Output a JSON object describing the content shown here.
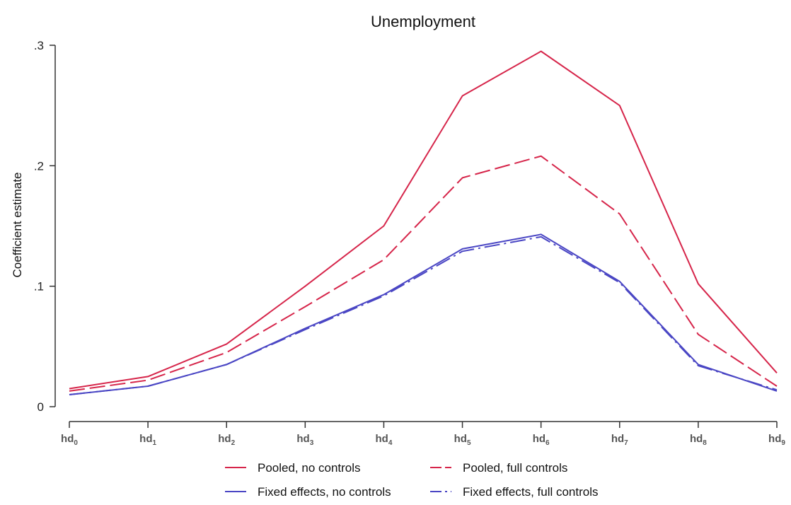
{
  "chart_data": {
    "type": "line",
    "title": "Unemployment",
    "ylabel": "Coefficient estimate",
    "xlabel": "",
    "ylim": [
      0,
      0.3
    ],
    "yticks": [
      0,
      0.1,
      0.2,
      0.3
    ],
    "ytick_labels": [
      "0",
      ".1",
      ".2",
      ".3"
    ],
    "categories": [
      {
        "base": "hd",
        "sub": "0"
      },
      {
        "base": "hd",
        "sub": "1"
      },
      {
        "base": "hd",
        "sub": "2"
      },
      {
        "base": "hd",
        "sub": "3"
      },
      {
        "base": "hd",
        "sub": "4"
      },
      {
        "base": "hd",
        "sub": "5"
      },
      {
        "base": "hd",
        "sub": "6"
      },
      {
        "base": "hd",
        "sub": "7"
      },
      {
        "base": "hd",
        "sub": "8"
      },
      {
        "base": "hd",
        "sub": "9"
      }
    ],
    "grid": false,
    "legend_position": "bottom",
    "series": [
      {
        "name": "Pooled, no controls",
        "color": "#d6254a",
        "style": "solid",
        "values": [
          0.015,
          0.025,
          0.052,
          0.1,
          0.15,
          0.258,
          0.295,
          0.25,
          0.102,
          0.028
        ]
      },
      {
        "name": "Pooled, full controls",
        "color": "#d6254a",
        "style": "dashed",
        "values": [
          0.013,
          0.022,
          0.045,
          0.083,
          0.122,
          0.19,
          0.208,
          0.16,
          0.06,
          0.017
        ]
      },
      {
        "name": "Fixed effects, no controls",
        "color": "#4a46c4",
        "style": "solid",
        "values": [
          0.01,
          0.017,
          0.035,
          0.065,
          0.093,
          0.131,
          0.143,
          0.104,
          0.035,
          0.013
        ]
      },
      {
        "name": "Fixed effects, full controls",
        "color": "#4a46c4",
        "style": "dashdot",
        "values": [
          0.01,
          0.017,
          0.035,
          0.064,
          0.092,
          0.129,
          0.141,
          0.103,
          0.034,
          0.014
        ]
      }
    ]
  }
}
